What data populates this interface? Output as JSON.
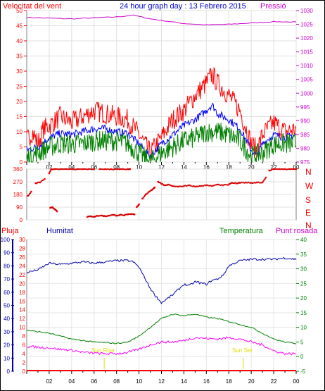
{
  "header": {
    "left_title": "Velocitat del vent",
    "center_title": "24 hour graph day : 13 Febrero 2015",
    "right_title": "Pressió"
  },
  "colors": {
    "wind_red": "#ff0000",
    "wind_dark": "#cc0000",
    "avg_blue": "#0000ff",
    "wind_green": "#008000",
    "pressure_magenta": "#cc00cc",
    "humidity_blue": "#0000aa",
    "dew_magenta": "#ff00ff",
    "sun_yellow": "#dddd00",
    "frame_gray": "#808080"
  },
  "chart_data": [
    {
      "type": "line",
      "name": "wind-pressure",
      "x_tick_labels": [
        "02",
        "04",
        "06",
        "08",
        "10",
        "12",
        "14",
        "16",
        "18",
        "20",
        "22",
        "00"
      ],
      "y_left": {
        "label": "Velocitat del vent",
        "ticks": [
          0,
          5,
          10,
          15,
          20,
          25,
          30,
          35,
          40,
          45,
          50
        ],
        "range": [
          0,
          50
        ]
      },
      "y_right": {
        "label": "Pressió",
        "ticks": [
          975,
          980,
          985,
          990,
          995,
          1000,
          1005,
          1010,
          1015,
          1020,
          1025,
          1030
        ],
        "range": [
          975,
          1030
        ]
      },
      "pressure_profile": [
        [
          0,
          1027.5
        ],
        [
          4,
          1027
        ],
        [
          8,
          1027.7
        ],
        [
          9.5,
          1028.3
        ],
        [
          11,
          1027
        ],
        [
          14,
          1025.3
        ],
        [
          16,
          1024.8
        ],
        [
          18,
          1025
        ],
        [
          20,
          1025.5
        ],
        [
          22,
          1026
        ],
        [
          24,
          1025.8
        ]
      ],
      "gust_profile": [
        [
          0,
          7
        ],
        [
          0.5,
          10
        ],
        [
          1,
          6
        ],
        [
          1.5,
          11
        ],
        [
          2,
          12
        ],
        [
          3,
          15
        ],
        [
          4,
          13
        ],
        [
          5,
          15
        ],
        [
          6,
          17
        ],
        [
          7,
          16
        ],
        [
          8,
          15
        ],
        [
          9,
          14
        ],
        [
          10,
          9
        ],
        [
          11,
          3
        ],
        [
          12,
          8
        ],
        [
          13,
          14
        ],
        [
          14,
          17
        ],
        [
          15,
          22
        ],
        [
          16,
          26
        ],
        [
          16.5,
          29
        ],
        [
          17,
          26
        ],
        [
          18,
          22
        ],
        [
          19,
          17
        ],
        [
          20,
          6
        ],
        [
          20.5,
          4
        ],
        [
          21,
          9
        ],
        [
          22,
          13
        ],
        [
          23,
          10
        ],
        [
          24,
          11
        ]
      ],
      "avg_profile": [
        [
          0,
          4
        ],
        [
          1,
          5
        ],
        [
          2,
          8
        ],
        [
          3,
          9.5
        ],
        [
          4,
          9
        ],
        [
          5,
          10
        ],
        [
          6,
          11
        ],
        [
          7,
          11
        ],
        [
          8,
          10
        ],
        [
          9,
          9.5
        ],
        [
          10,
          6
        ],
        [
          11,
          2
        ],
        [
          12,
          6
        ],
        [
          13,
          9
        ],
        [
          14,
          12
        ],
        [
          15,
          14
        ],
        [
          16,
          17
        ],
        [
          16.5,
          19
        ],
        [
          17,
          16
        ],
        [
          18,
          14
        ],
        [
          19,
          11
        ],
        [
          20,
          4
        ],
        [
          20.5,
          2
        ],
        [
          21,
          6
        ],
        [
          22,
          9
        ],
        [
          23,
          8
        ],
        [
          24,
          9
        ]
      ],
      "min_profile": [
        [
          0,
          1
        ],
        [
          1,
          3
        ],
        [
          2,
          5
        ],
        [
          3,
          6
        ],
        [
          4,
          6
        ],
        [
          5,
          6
        ],
        [
          6,
          7
        ],
        [
          7,
          7
        ],
        [
          8,
          7
        ],
        [
          9,
          6
        ],
        [
          10,
          3
        ],
        [
          11,
          0
        ],
        [
          12,
          3
        ],
        [
          13,
          5
        ],
        [
          14,
          7
        ],
        [
          15,
          8
        ],
        [
          16,
          10
        ],
        [
          17,
          10
        ],
        [
          18,
          9
        ],
        [
          19,
          7
        ],
        [
          20,
          2
        ],
        [
          21,
          3
        ],
        [
          22,
          6
        ],
        [
          23,
          6
        ],
        [
          24,
          6
        ]
      ]
    },
    {
      "type": "scatter",
      "name": "wind-direction",
      "y_ticks": [
        0,
        90,
        180,
        270,
        360
      ],
      "range": [
        0,
        360
      ],
      "compass_labels": [
        "N",
        "W",
        "S",
        "E",
        "N"
      ],
      "points": [
        [
          0.1,
          170
        ],
        [
          0.4,
          200
        ],
        [
          0.8,
          260
        ],
        [
          1.2,
          265
        ],
        [
          1.6,
          290
        ],
        [
          2,
          330
        ],
        [
          2.2,
          360
        ],
        [
          2.5,
          360
        ],
        [
          3,
          360
        ],
        [
          3.5,
          360
        ],
        [
          4,
          360
        ],
        [
          4.5,
          360
        ],
        [
          5,
          360
        ],
        [
          5.5,
          360
        ],
        [
          6,
          360
        ],
        [
          2.1,
          85
        ],
        [
          2.3,
          90
        ],
        [
          2.5,
          75
        ],
        [
          2.7,
          60
        ],
        [
          6.5,
          360
        ],
        [
          7,
          360
        ],
        [
          7.5,
          360
        ],
        [
          8,
          360
        ],
        [
          8.5,
          360
        ],
        [
          9,
          360
        ],
        [
          9.2,
          360
        ],
        [
          5.4,
          20
        ],
        [
          5.7,
          25
        ],
        [
          6,
          22
        ],
        [
          6.3,
          28
        ],
        [
          6.7,
          30
        ],
        [
          7,
          25
        ],
        [
          7.3,
          30
        ],
        [
          7.7,
          35
        ],
        [
          8,
          30
        ],
        [
          8.3,
          35
        ],
        [
          8.7,
          32
        ],
        [
          9,
          38
        ],
        [
          9.3,
          40
        ],
        [
          9.6,
          38
        ],
        [
          9.8,
          90
        ],
        [
          10,
          110
        ],
        [
          10.3,
          150
        ],
        [
          10.6,
          180
        ],
        [
          10.9,
          200
        ],
        [
          11.2,
          215
        ],
        [
          11.4,
          230
        ],
        [
          11.7,
          270
        ],
        [
          12,
          255
        ],
        [
          12.3,
          245
        ],
        [
          12.6,
          250
        ],
        [
          13,
          240
        ],
        [
          13.5,
          235
        ],
        [
          14,
          240
        ],
        [
          14.5,
          245
        ],
        [
          15,
          235
        ],
        [
          15.5,
          240
        ],
        [
          16,
          245
        ],
        [
          16.5,
          240
        ],
        [
          17,
          250
        ],
        [
          17.5,
          245
        ],
        [
          18,
          250
        ],
        [
          18.3,
          262
        ],
        [
          18.7,
          258
        ],
        [
          19,
          262
        ],
        [
          19.5,
          265
        ],
        [
          20,
          262
        ],
        [
          20.5,
          265
        ],
        [
          21,
          265
        ],
        [
          21.3,
          300
        ],
        [
          21.6,
          350
        ],
        [
          22,
          360
        ],
        [
          22.5,
          360
        ],
        [
          23,
          360
        ],
        [
          23.5,
          360
        ],
        [
          24,
          360
        ]
      ]
    },
    {
      "type": "line",
      "name": "humidity-temperature",
      "header": {
        "pluja": "Pluja",
        "humitat": "Humitat",
        "temperatura": "Temperatura",
        "punt_rosada": "Punt rosada"
      },
      "x_tick_labels": [
        "02",
        "04",
        "06",
        "08",
        "10",
        "12",
        "14",
        "16",
        "18",
        "20",
        "22",
        "00"
      ],
      "rain_ticks": [
        0,
        2,
        4,
        6,
        8,
        10,
        12,
        14,
        16,
        18,
        20,
        22,
        24,
        26,
        28,
        30
      ],
      "humidity_ticks": [
        0,
        10,
        20,
        30,
        40,
        50,
        60,
        70,
        80,
        90,
        100
      ],
      "temp_ticks": [
        -5,
        0,
        5,
        10,
        15,
        20,
        25,
        30,
        35,
        40
      ],
      "humidity_range": [
        0,
        100
      ],
      "temp_range": [
        -5,
        40
      ],
      "humidity_profile": [
        [
          0,
          75
        ],
        [
          1,
          77
        ],
        [
          2,
          82
        ],
        [
          3,
          81
        ],
        [
          4,
          82
        ],
        [
          5,
          83
        ],
        [
          6,
          82
        ],
        [
          7,
          83
        ],
        [
          8,
          84
        ],
        [
          9,
          84
        ],
        [
          9.5,
          83
        ],
        [
          10,
          79
        ],
        [
          11,
          63
        ],
        [
          11.5,
          57
        ],
        [
          12,
          52
        ],
        [
          12.5,
          55
        ],
        [
          13,
          58
        ],
        [
          13.5,
          62
        ],
        [
          14,
          66
        ],
        [
          14.5,
          65
        ],
        [
          15,
          68
        ],
        [
          16,
          66
        ],
        [
          16.5,
          69
        ],
        [
          17,
          70
        ],
        [
          17.5,
          73
        ],
        [
          18,
          80
        ],
        [
          18.5,
          82
        ],
        [
          19,
          84
        ],
        [
          20,
          85
        ],
        [
          21,
          85
        ],
        [
          22,
          85
        ],
        [
          23,
          86
        ],
        [
          24,
          85
        ]
      ],
      "temp_profile": [
        [
          0,
          9
        ],
        [
          1,
          8.5
        ],
        [
          2,
          8
        ],
        [
          3,
          7
        ],
        [
          4,
          6
        ],
        [
          5,
          5.5
        ],
        [
          6,
          5
        ],
        [
          7,
          4.8
        ],
        [
          8,
          4.5
        ],
        [
          9,
          5
        ],
        [
          10,
          7
        ],
        [
          11,
          10
        ],
        [
          12,
          13
        ],
        [
          13,
          14.5
        ],
        [
          14,
          14
        ],
        [
          15,
          14.5
        ],
        [
          16,
          13.5
        ],
        [
          17,
          13
        ],
        [
          18,
          12
        ],
        [
          19,
          11
        ],
        [
          20,
          10
        ],
        [
          21,
          8
        ],
        [
          22,
          6
        ],
        [
          23,
          5
        ],
        [
          24,
          4.5
        ]
      ],
      "dew_profile": [
        [
          0,
          3.5
        ],
        [
          1,
          3.2
        ],
        [
          2,
          3
        ],
        [
          3,
          2.5
        ],
        [
          4,
          2.2
        ],
        [
          5,
          1.5
        ],
        [
          6,
          1.2
        ],
        [
          7,
          1
        ],
        [
          8,
          1
        ],
        [
          9,
          1.5
        ],
        [
          10,
          2.5
        ],
        [
          11,
          4
        ],
        [
          12,
          5
        ],
        [
          13,
          5
        ],
        [
          14,
          5.5
        ],
        [
          15,
          6.5
        ],
        [
          16,
          6.2
        ],
        [
          17,
          6
        ],
        [
          18,
          6.5
        ],
        [
          19,
          6
        ],
        [
          20,
          5
        ],
        [
          21,
          4
        ],
        [
          22,
          2
        ],
        [
          23,
          1
        ],
        [
          24,
          1
        ]
      ],
      "sun_rise_label": "Sun Rise",
      "sun_set_label": "Sun Set",
      "sun_rise_hour": 6.9,
      "sun_set_hour": 19.3
    }
  ]
}
